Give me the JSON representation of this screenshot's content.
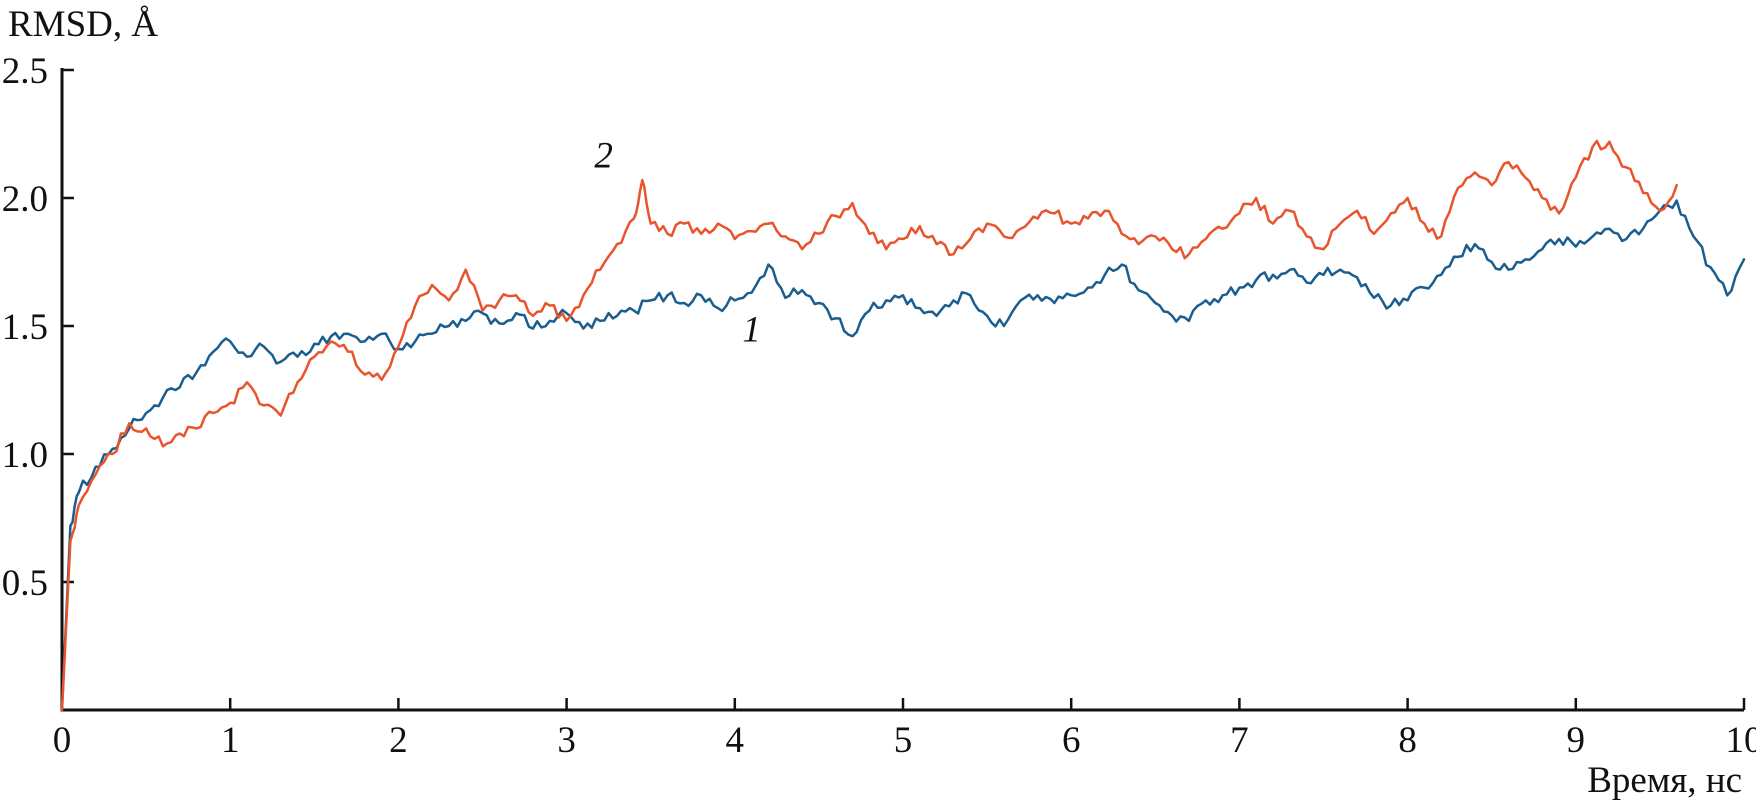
{
  "chart_data": {
    "type": "line",
    "title": "",
    "ylabel": "RMSD, Å",
    "xlabel": "Время, нс",
    "xlim": [
      0,
      10
    ],
    "ylim": [
      0,
      2.5
    ],
    "grid": false,
    "legend": "none",
    "x_ticks": [
      0,
      1,
      2,
      3,
      4,
      5,
      6,
      7,
      8,
      9,
      10
    ],
    "x_tick_labels": [
      "0",
      "1",
      "2",
      "3",
      "4",
      "5",
      "6",
      "7",
      "8",
      "9",
      "10"
    ],
    "y_ticks": [
      0,
      0.5,
      1.0,
      1.5,
      2.0,
      2.5
    ],
    "y_tick_labels": [
      "",
      "0.5",
      "1.0",
      "1.5",
      "2.0",
      "2.5"
    ],
    "axis_color": "#111111",
    "noise_amplitude": 0.022,
    "line_width": 2.5,
    "annotations": [
      {
        "text": "2",
        "x": 3.22,
        "y": 2.12
      },
      {
        "text": "1",
        "x": 4.1,
        "y": 1.44
      }
    ],
    "series": [
      {
        "name": "1",
        "color": "#1a5d8f",
        "points": [
          [
            0,
            0
          ],
          [
            0.05,
            0.72
          ],
          [
            0.1,
            0.85
          ],
          [
            0.2,
            0.95
          ],
          [
            0.3,
            1.02
          ],
          [
            0.4,
            1.1
          ],
          [
            0.5,
            1.16
          ],
          [
            0.6,
            1.22
          ],
          [
            0.7,
            1.26
          ],
          [
            0.8,
            1.32
          ],
          [
            0.9,
            1.4
          ],
          [
            1,
            1.44
          ],
          [
            1.1,
            1.38
          ],
          [
            1.2,
            1.42
          ],
          [
            1.3,
            1.36
          ],
          [
            1.4,
            1.38
          ],
          [
            1.5,
            1.43
          ],
          [
            1.6,
            1.46
          ],
          [
            1.7,
            1.47
          ],
          [
            1.8,
            1.44
          ],
          [
            1.9,
            1.47
          ],
          [
            2,
            1.41
          ],
          [
            2.1,
            1.44
          ],
          [
            2.2,
            1.47
          ],
          [
            2.3,
            1.5
          ],
          [
            2.4,
            1.52
          ],
          [
            2.5,
            1.55
          ],
          [
            2.6,
            1.51
          ],
          [
            2.7,
            1.55
          ],
          [
            2.8,
            1.49
          ],
          [
            2.9,
            1.52
          ],
          [
            3,
            1.55
          ],
          [
            3.1,
            1.49
          ],
          [
            3.2,
            1.52
          ],
          [
            3.3,
            1.54
          ],
          [
            3.4,
            1.56
          ],
          [
            3.5,
            1.6
          ],
          [
            3.6,
            1.62
          ],
          [
            3.7,
            1.59
          ],
          [
            3.8,
            1.62
          ],
          [
            3.9,
            1.57
          ],
          [
            4,
            1.6
          ],
          [
            4.1,
            1.63
          ],
          [
            4.2,
            1.74
          ],
          [
            4.3,
            1.61
          ],
          [
            4.4,
            1.64
          ],
          [
            4.5,
            1.59
          ],
          [
            4.6,
            1.53
          ],
          [
            4.7,
            1.46
          ],
          [
            4.8,
            1.56
          ],
          [
            4.9,
            1.6
          ],
          [
            5,
            1.62
          ],
          [
            5.1,
            1.57
          ],
          [
            5.2,
            1.54
          ],
          [
            5.3,
            1.6
          ],
          [
            5.4,
            1.62
          ],
          [
            5.5,
            1.54
          ],
          [
            5.6,
            1.5
          ],
          [
            5.7,
            1.6
          ],
          [
            5.8,
            1.62
          ],
          [
            5.9,
            1.59
          ],
          [
            6,
            1.62
          ],
          [
            6.1,
            1.65
          ],
          [
            6.2,
            1.7
          ],
          [
            6.3,
            1.74
          ],
          [
            6.4,
            1.64
          ],
          [
            6.5,
            1.59
          ],
          [
            6.6,
            1.54
          ],
          [
            6.7,
            1.52
          ],
          [
            6.8,
            1.6
          ],
          [
            6.9,
            1.62
          ],
          [
            7,
            1.65
          ],
          [
            7.1,
            1.68
          ],
          [
            7.2,
            1.7
          ],
          [
            7.3,
            1.72
          ],
          [
            7.4,
            1.67
          ],
          [
            7.5,
            1.7
          ],
          [
            7.6,
            1.72
          ],
          [
            7.7,
            1.69
          ],
          [
            7.8,
            1.61
          ],
          [
            7.9,
            1.58
          ],
          [
            8,
            1.6
          ],
          [
            8.1,
            1.65
          ],
          [
            8.2,
            1.7
          ],
          [
            8.3,
            1.77
          ],
          [
            8.4,
            1.82
          ],
          [
            8.5,
            1.75
          ],
          [
            8.6,
            1.72
          ],
          [
            8.7,
            1.76
          ],
          [
            8.8,
            1.8
          ],
          [
            8.9,
            1.84
          ],
          [
            9,
            1.81
          ],
          [
            9.1,
            1.85
          ],
          [
            9.2,
            1.88
          ],
          [
            9.3,
            1.84
          ],
          [
            9.4,
            1.88
          ],
          [
            9.5,
            1.95
          ],
          [
            9.6,
            1.99
          ],
          [
            9.7,
            1.85
          ],
          [
            9.8,
            1.73
          ],
          [
            9.9,
            1.62
          ],
          [
            10,
            1.76
          ]
        ]
      },
      {
        "name": "2",
        "color": "#e8542c",
        "points": [
          [
            0,
            0
          ],
          [
            0.05,
            0.66
          ],
          [
            0.1,
            0.8
          ],
          [
            0.2,
            0.92
          ],
          [
            0.3,
            1.0
          ],
          [
            0.4,
            1.12
          ],
          [
            0.5,
            1.1
          ],
          [
            0.6,
            1.03
          ],
          [
            0.7,
            1.08
          ],
          [
            0.8,
            1.1
          ],
          [
            0.9,
            1.16
          ],
          [
            1,
            1.2
          ],
          [
            1.1,
            1.28
          ],
          [
            1.2,
            1.19
          ],
          [
            1.3,
            1.15
          ],
          [
            1.4,
            1.28
          ],
          [
            1.5,
            1.38
          ],
          [
            1.6,
            1.44
          ],
          [
            1.7,
            1.4
          ],
          [
            1.8,
            1.31
          ],
          [
            1.9,
            1.29
          ],
          [
            2,
            1.42
          ],
          [
            2.1,
            1.58
          ],
          [
            2.2,
            1.66
          ],
          [
            2.3,
            1.6
          ],
          [
            2.4,
            1.72
          ],
          [
            2.5,
            1.56
          ],
          [
            2.6,
            1.6
          ],
          [
            2.7,
            1.62
          ],
          [
            2.8,
            1.54
          ],
          [
            2.9,
            1.58
          ],
          [
            3,
            1.52
          ],
          [
            3.1,
            1.62
          ],
          [
            3.2,
            1.72
          ],
          [
            3.3,
            1.82
          ],
          [
            3.4,
            1.92
          ],
          [
            3.45,
            2.07
          ],
          [
            3.5,
            1.9
          ],
          [
            3.6,
            1.86
          ],
          [
            3.7,
            1.9
          ],
          [
            3.8,
            1.86
          ],
          [
            3.9,
            1.9
          ],
          [
            4,
            1.84
          ],
          [
            4.1,
            1.87
          ],
          [
            4.2,
            1.9
          ],
          [
            4.3,
            1.85
          ],
          [
            4.4,
            1.8
          ],
          [
            4.5,
            1.86
          ],
          [
            4.6,
            1.93
          ],
          [
            4.7,
            1.98
          ],
          [
            4.8,
            1.86
          ],
          [
            4.9,
            1.8
          ],
          [
            5,
            1.84
          ],
          [
            5.1,
            1.89
          ],
          [
            5.2,
            1.82
          ],
          [
            5.3,
            1.78
          ],
          [
            5.4,
            1.84
          ],
          [
            5.5,
            1.9
          ],
          [
            5.6,
            1.85
          ],
          [
            5.7,
            1.88
          ],
          [
            5.8,
            1.92
          ],
          [
            5.9,
            1.94
          ],
          [
            6,
            1.9
          ],
          [
            6.1,
            1.92
          ],
          [
            6.2,
            1.95
          ],
          [
            6.3,
            1.86
          ],
          [
            6.4,
            1.82
          ],
          [
            6.5,
            1.85
          ],
          [
            6.6,
            1.8
          ],
          [
            6.7,
            1.78
          ],
          [
            6.8,
            1.84
          ],
          [
            6.9,
            1.88
          ],
          [
            7,
            1.94
          ],
          [
            7.1,
            2.0
          ],
          [
            7.2,
            1.9
          ],
          [
            7.3,
            1.95
          ],
          [
            7.4,
            1.85
          ],
          [
            7.5,
            1.8
          ],
          [
            7.6,
            1.9
          ],
          [
            7.7,
            1.95
          ],
          [
            7.8,
            1.86
          ],
          [
            7.9,
            1.94
          ],
          [
            8,
            2.0
          ],
          [
            8.1,
            1.9
          ],
          [
            8.2,
            1.85
          ],
          [
            8.3,
            2.04
          ],
          [
            8.4,
            2.1
          ],
          [
            8.5,
            2.05
          ],
          [
            8.6,
            2.14
          ],
          [
            8.7,
            2.08
          ],
          [
            8.8,
            2.0
          ],
          [
            8.9,
            1.94
          ],
          [
            9,
            2.08
          ],
          [
            9.1,
            2.2
          ],
          [
            9.2,
            2.22
          ],
          [
            9.3,
            2.12
          ],
          [
            9.4,
            2.02
          ],
          [
            9.5,
            1.95
          ],
          [
            9.6,
            2.05
          ]
        ]
      }
    ]
  }
}
